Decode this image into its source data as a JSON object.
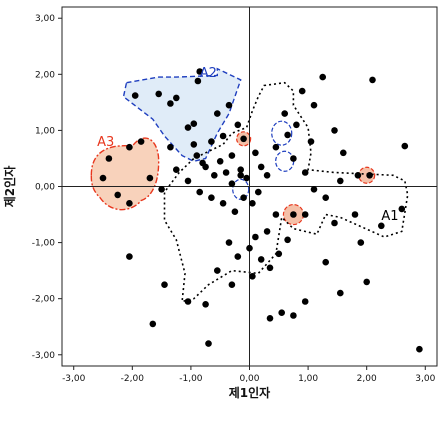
{
  "chart_data": {
    "type": "scatter",
    "xlabel": "제1인자",
    "ylabel": "제2인자",
    "xlim": [
      -3.2,
      3.2
    ],
    "ylim": [
      -3.2,
      3.2
    ],
    "x_ticks": [
      "-3,00",
      "-2,00",
      "-1,00",
      "0,00",
      "1,00",
      "2,00",
      "3,00"
    ],
    "y_ticks": [
      "3,00",
      "2,00",
      "1,00",
      "0,00",
      "-1,00",
      "-2,00",
      "-3,00"
    ],
    "grid": false,
    "reference_lines": {
      "x": 0,
      "y": 0
    },
    "points": [
      [
        -1.95,
        1.62
      ],
      [
        -1.55,
        1.65
      ],
      [
        -1.35,
        1.48
      ],
      [
        -1.25,
        1.58
      ],
      [
        -0.85,
        2.05
      ],
      [
        -0.88,
        1.88
      ],
      [
        -1.05,
        1.05
      ],
      [
        -0.95,
        1.12
      ],
      [
        -1.35,
        0.7
      ],
      [
        -0.9,
        0.55
      ],
      [
        -0.95,
        0.75
      ],
      [
        -0.8,
        0.42
      ],
      [
        -2.05,
        0.7
      ],
      [
        -2.4,
        0.5
      ],
      [
        -1.85,
        0.8
      ],
      [
        -2.5,
        0.15
      ],
      [
        -2.25,
        -0.15
      ],
      [
        -2.05,
        -0.3
      ],
      [
        -1.7,
        0.15
      ],
      [
        -0.55,
        1.3
      ],
      [
        -0.35,
        1.45
      ],
      [
        -0.2,
        1.1
      ],
      [
        -0.1,
        0.85
      ],
      [
        -0.3,
        0.55
      ],
      [
        -0.45,
        0.9
      ],
      [
        -0.65,
        0.8
      ],
      [
        -0.75,
        0.35
      ],
      [
        -0.6,
        0.2
      ],
      [
        -0.5,
        0.45
      ],
      [
        -0.4,
        0.25
      ],
      [
        -0.3,
        0.05
      ],
      [
        -0.15,
        0.3
      ],
      [
        -0.05,
        0.15
      ],
      [
        0.1,
        0.6
      ],
      [
        0.2,
        0.35
      ],
      [
        0.3,
        0.2
      ],
      [
        0.15,
        -0.1
      ],
      [
        0.05,
        -0.3
      ],
      [
        -0.1,
        -0.2
      ],
      [
        -0.25,
        -0.45
      ],
      [
        -0.45,
        -0.3
      ],
      [
        -0.65,
        -0.2
      ],
      [
        -0.85,
        -0.1
      ],
      [
        -1.05,
        0.1
      ],
      [
        -1.25,
        0.3
      ],
      [
        -1.5,
        -0.05
      ],
      [
        0.45,
        -0.5
      ],
      [
        0.3,
        -0.8
      ],
      [
        0.1,
        -0.9
      ],
      [
        0.0,
        -1.1
      ],
      [
        -0.2,
        -1.25
      ],
      [
        -0.35,
        -1.0
      ],
      [
        0.2,
        -1.3
      ],
      [
        0.35,
        -1.45
      ],
      [
        0.5,
        -1.2
      ],
      [
        0.65,
        -0.95
      ],
      [
        0.45,
        0.7
      ],
      [
        0.65,
        0.92
      ],
      [
        0.75,
        0.5
      ],
      [
        0.95,
        0.25
      ],
      [
        0.8,
        1.1
      ],
      [
        1.05,
        0.8
      ],
      [
        1.1,
        1.45
      ],
      [
        1.25,
        1.95
      ],
      [
        0.9,
        1.7
      ],
      [
        0.6,
        1.3
      ],
      [
        1.45,
        1.0
      ],
      [
        1.6,
        0.6
      ],
      [
        1.85,
        0.2
      ],
      [
        2.05,
        0.2
      ],
      [
        1.55,
        0.1
      ],
      [
        1.3,
        -0.2
      ],
      [
        1.1,
        -0.05
      ],
      [
        0.95,
        -0.5
      ],
      [
        0.75,
        -0.5
      ],
      [
        1.45,
        -0.65
      ],
      [
        1.8,
        -0.5
      ],
      [
        2.1,
        1.9
      ],
      [
        2.65,
        0.72
      ],
      [
        2.6,
        -0.4
      ],
      [
        2.25,
        -0.7
      ],
      [
        1.9,
        -1.0
      ],
      [
        2.0,
        -1.7
      ],
      [
        1.55,
        -1.9
      ],
      [
        0.35,
        -2.35
      ],
      [
        0.55,
        -2.25
      ],
      [
        0.75,
        -2.3
      ],
      [
        0.05,
        -1.6
      ],
      [
        -0.3,
        -1.75
      ],
      [
        -0.55,
        -1.5
      ],
      [
        -0.75,
        -2.1
      ],
      [
        -1.05,
        -2.05
      ],
      [
        -1.45,
        -1.75
      ],
      [
        -2.05,
        -1.25
      ],
      [
        -1.65,
        -2.45
      ],
      [
        -0.7,
        -2.8
      ],
      [
        0.95,
        -2.05
      ],
      [
        1.3,
        -1.35
      ],
      [
        2.9,
        -2.9
      ],
      [
        -0.15,
        0.2
      ]
    ],
    "annotations": [
      {
        "label": "A1",
        "color": "#000000"
      },
      {
        "label": "A2",
        "color": "#1f3fbf"
      },
      {
        "label": "A3",
        "color": "#e8371e"
      }
    ]
  }
}
